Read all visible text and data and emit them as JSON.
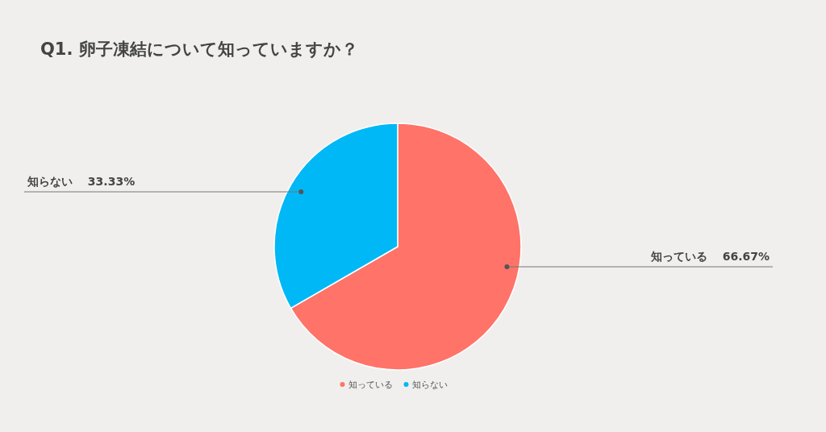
{
  "chart_data": {
    "type": "pie",
    "title": "Q1. 卵子凍結について知っていますか？",
    "categories": [
      "知っている",
      "知らない"
    ],
    "values": [
      66.67,
      33.33
    ],
    "value_labels": [
      "66.67%",
      "33.33%"
    ],
    "colors": [
      "#ff7369",
      "#00b8f5"
    ],
    "legend": "bottom"
  }
}
